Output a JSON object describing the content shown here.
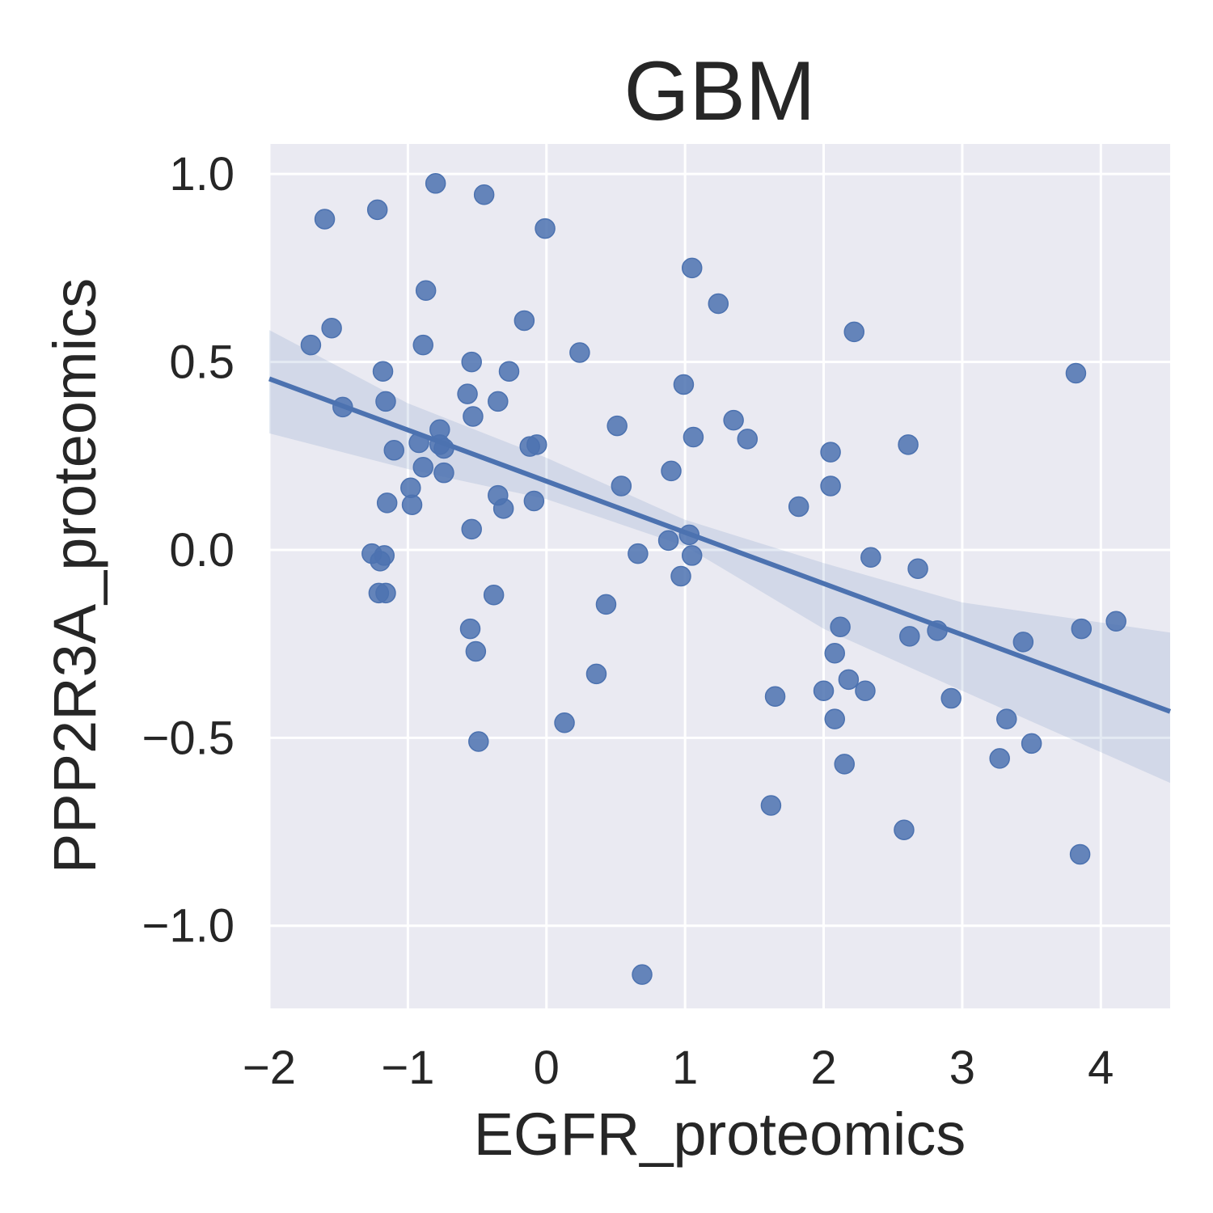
{
  "chart_data": {
    "type": "scatter",
    "title": "GBM",
    "xlabel": "EGFR_proteomics",
    "ylabel": "PPP2R3A_proteomics",
    "xlim": [
      -2.0,
      4.5
    ],
    "ylim": [
      -1.22,
      1.08
    ],
    "xticks": [
      -2,
      -1,
      0,
      1,
      2,
      3,
      4
    ],
    "xtick_labels": [
      "−2",
      "−1",
      "0",
      "1",
      "2",
      "3",
      "4"
    ],
    "yticks": [
      -1.0,
      -0.5,
      0.0,
      0.5,
      1.0
    ],
    "ytick_labels": [
      "−1.0",
      "−0.5",
      "0.0",
      "0.5",
      "1.0"
    ],
    "grid": true,
    "legend": "none",
    "colors": {
      "background": "#eaeaf2",
      "grid": "#ffffff",
      "point": "#4c72b0",
      "line": "#4c72b0",
      "band": "#4c72b0"
    },
    "regression": {
      "x": [
        -2.0,
        4.5
      ],
      "y": [
        0.455,
        -0.43
      ],
      "ci_x": [
        -2.0,
        -1.0,
        0.0,
        1.0,
        2.0,
        3.0,
        4.5
      ],
      "ci_upper": [
        0.585,
        0.39,
        0.245,
        0.08,
        -0.035,
        -0.14,
        -0.22
      ],
      "ci_lower": [
        0.31,
        0.215,
        0.135,
        0.01,
        -0.21,
        -0.375,
        -0.62
      ]
    },
    "points": [
      {
        "x": -1.6,
        "y": 0.88
      },
      {
        "x": -1.22,
        "y": 0.905
      },
      {
        "x": -0.8,
        "y": 0.975
      },
      {
        "x": -0.45,
        "y": 0.945
      },
      {
        "x": -0.01,
        "y": 0.855
      },
      {
        "x": -0.87,
        "y": 0.69
      },
      {
        "x": 1.05,
        "y": 0.75
      },
      {
        "x": 1.24,
        "y": 0.655
      },
      {
        "x": -0.16,
        "y": 0.61
      },
      {
        "x": -1.55,
        "y": 0.59
      },
      {
        "x": 2.22,
        "y": 0.58
      },
      {
        "x": -1.7,
        "y": 0.545
      },
      {
        "x": -0.89,
        "y": 0.545
      },
      {
        "x": 0.24,
        "y": 0.525
      },
      {
        "x": -0.54,
        "y": 0.5
      },
      {
        "x": -1.18,
        "y": 0.475
      },
      {
        "x": -0.27,
        "y": 0.475
      },
      {
        "x": 3.82,
        "y": 0.47
      },
      {
        "x": 0.99,
        "y": 0.44
      },
      {
        "x": -0.57,
        "y": 0.415
      },
      {
        "x": -1.16,
        "y": 0.395
      },
      {
        "x": -0.35,
        "y": 0.395
      },
      {
        "x": -1.47,
        "y": 0.38
      },
      {
        "x": -0.53,
        "y": 0.355
      },
      {
        "x": 1.35,
        "y": 0.345
      },
      {
        "x": 0.51,
        "y": 0.33
      },
      {
        "x": -0.77,
        "y": 0.32
      },
      {
        "x": 1.06,
        "y": 0.3
      },
      {
        "x": 1.45,
        "y": 0.295
      },
      {
        "x": -0.92,
        "y": 0.285
      },
      {
        "x": -0.77,
        "y": 0.28
      },
      {
        "x": 2.61,
        "y": 0.28
      },
      {
        "x": -0.07,
        "y": 0.28
      },
      {
        "x": -0.12,
        "y": 0.275
      },
      {
        "x": -0.74,
        "y": 0.27
      },
      {
        "x": -1.1,
        "y": 0.265
      },
      {
        "x": 2.05,
        "y": 0.26
      },
      {
        "x": -0.89,
        "y": 0.22
      },
      {
        "x": 0.9,
        "y": 0.21
      },
      {
        "x": -0.74,
        "y": 0.205
      },
      {
        "x": 0.54,
        "y": 0.17
      },
      {
        "x": 2.05,
        "y": 0.17
      },
      {
        "x": -0.98,
        "y": 0.165
      },
      {
        "x": -0.35,
        "y": 0.145
      },
      {
        "x": -0.09,
        "y": 0.13
      },
      {
        "x": -1.15,
        "y": 0.125
      },
      {
        "x": -0.97,
        "y": 0.12
      },
      {
        "x": 1.82,
        "y": 0.115
      },
      {
        "x": -0.31,
        "y": 0.11
      },
      {
        "x": -0.54,
        "y": 0.055
      },
      {
        "x": 1.03,
        "y": 0.04
      },
      {
        "x": 0.88,
        "y": 0.025
      },
      {
        "x": 0.66,
        "y": -0.01
      },
      {
        "x": -1.26,
        "y": -0.01
      },
      {
        "x": -1.17,
        "y": -0.015
      },
      {
        "x": 1.05,
        "y": -0.015
      },
      {
        "x": 2.34,
        "y": -0.02
      },
      {
        "x": -1.2,
        "y": -0.03
      },
      {
        "x": 2.68,
        "y": -0.05
      },
      {
        "x": 0.97,
        "y": -0.07
      },
      {
        "x": -1.21,
        "y": -0.115
      },
      {
        "x": -1.16,
        "y": -0.115
      },
      {
        "x": -0.38,
        "y": -0.12
      },
      {
        "x": 0.43,
        "y": -0.145
      },
      {
        "x": 4.11,
        "y": -0.19
      },
      {
        "x": 2.12,
        "y": -0.205
      },
      {
        "x": -0.55,
        "y": -0.21
      },
      {
        "x": 3.86,
        "y": -0.21
      },
      {
        "x": 2.82,
        "y": -0.215
      },
      {
        "x": 2.62,
        "y": -0.23
      },
      {
        "x": 3.44,
        "y": -0.245
      },
      {
        "x": -0.51,
        "y": -0.27
      },
      {
        "x": 2.08,
        "y": -0.275
      },
      {
        "x": 0.36,
        "y": -0.33
      },
      {
        "x": 2.18,
        "y": -0.345
      },
      {
        "x": 2.3,
        "y": -0.375
      },
      {
        "x": 2.0,
        "y": -0.375
      },
      {
        "x": 1.65,
        "y": -0.39
      },
      {
        "x": 2.92,
        "y": -0.395
      },
      {
        "x": 3.32,
        "y": -0.45
      },
      {
        "x": 2.08,
        "y": -0.45
      },
      {
        "x": 0.13,
        "y": -0.46
      },
      {
        "x": -0.49,
        "y": -0.51
      },
      {
        "x": 3.5,
        "y": -0.515
      },
      {
        "x": 3.27,
        "y": -0.555
      },
      {
        "x": 2.15,
        "y": -0.57
      },
      {
        "x": 1.62,
        "y": -0.68
      },
      {
        "x": 2.58,
        "y": -0.745
      },
      {
        "x": 3.85,
        "y": -0.81
      },
      {
        "x": 0.69,
        "y": -1.13
      }
    ]
  }
}
